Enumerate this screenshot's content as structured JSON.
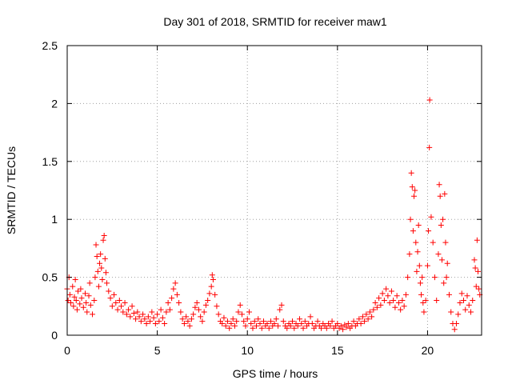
{
  "chart_data": {
    "type": "scatter",
    "title": "Day 301 of 2018, SRMTID for receiver maw1",
    "xlabel": "GPS time / hours",
    "ylabel": "SRMTID / TECUs",
    "xlim": [
      0,
      23
    ],
    "ylim": [
      0,
      2.5
    ],
    "xticks": [
      0,
      5,
      10,
      15,
      20
    ],
    "xtick_labels": [
      "0",
      "5",
      "10",
      "15",
      "20"
    ],
    "yticks": [
      0,
      0.5,
      1,
      1.5,
      2,
      2.5
    ],
    "ytick_labels": [
      "0",
      "0.5",
      "1",
      "1.5",
      "2",
      "2.5"
    ],
    "grid": true,
    "marker": "+",
    "color": "#ff0000",
    "series": [
      {
        "name": "SRMTID",
        "points": [
          [
            0.0,
            0.4
          ],
          [
            0.05,
            0.3
          ],
          [
            0.1,
            0.5
          ],
          [
            0.15,
            0.35
          ],
          [
            0.2,
            0.28
          ],
          [
            0.3,
            0.42
          ],
          [
            0.35,
            0.25
          ],
          [
            0.4,
            0.33
          ],
          [
            0.45,
            0.48
          ],
          [
            0.5,
            0.3
          ],
          [
            0.55,
            0.22
          ],
          [
            0.6,
            0.38
          ],
          [
            0.7,
            0.27
          ],
          [
            0.75,
            0.4
          ],
          [
            0.8,
            0.32
          ],
          [
            0.9,
            0.24
          ],
          [
            1.0,
            0.36
          ],
          [
            1.05,
            0.28
          ],
          [
            1.1,
            0.2
          ],
          [
            1.2,
            0.34
          ],
          [
            1.25,
            0.45
          ],
          [
            1.3,
            0.26
          ],
          [
            1.4,
            0.18
          ],
          [
            1.5,
            0.3
          ],
          [
            1.55,
            0.5
          ],
          [
            1.6,
            0.78
          ],
          [
            1.65,
            0.68
          ],
          [
            1.7,
            0.55
          ],
          [
            1.75,
            0.42
          ],
          [
            1.8,
            0.62
          ],
          [
            1.85,
            0.7
          ],
          [
            1.9,
            0.58
          ],
          [
            1.95,
            0.48
          ],
          [
            2.0,
            0.82
          ],
          [
            2.05,
            0.86
          ],
          [
            2.1,
            0.66
          ],
          [
            2.15,
            0.54
          ],
          [
            2.2,
            0.45
          ],
          [
            2.3,
            0.38
          ],
          [
            2.4,
            0.32
          ],
          [
            2.5,
            0.25
          ],
          [
            2.6,
            0.35
          ],
          [
            2.7,
            0.28
          ],
          [
            2.8,
            0.22
          ],
          [
            2.9,
            0.3
          ],
          [
            3.0,
            0.25
          ],
          [
            3.1,
            0.2
          ],
          [
            3.2,
            0.28
          ],
          [
            3.3,
            0.18
          ],
          [
            3.4,
            0.22
          ],
          [
            3.5,
            0.16
          ],
          [
            3.6,
            0.25
          ],
          [
            3.7,
            0.19
          ],
          [
            3.8,
            0.14
          ],
          [
            3.9,
            0.2
          ],
          [
            4.0,
            0.16
          ],
          [
            4.1,
            0.12
          ],
          [
            4.2,
            0.18
          ],
          [
            4.3,
            0.14
          ],
          [
            4.4,
            0.1
          ],
          [
            4.5,
            0.16
          ],
          [
            4.6,
            0.12
          ],
          [
            4.7,
            0.2
          ],
          [
            4.8,
            0.15
          ],
          [
            4.9,
            0.1
          ],
          [
            5.0,
            0.18
          ],
          [
            5.1,
            0.12
          ],
          [
            5.2,
            0.22
          ],
          [
            5.3,
            0.15
          ],
          [
            5.4,
            0.1
          ],
          [
            5.5,
            0.2
          ],
          [
            5.6,
            0.28
          ],
          [
            5.7,
            0.22
          ],
          [
            5.8,
            0.32
          ],
          [
            5.9,
            0.4
          ],
          [
            6.0,
            0.45
          ],
          [
            6.1,
            0.35
          ],
          [
            6.2,
            0.28
          ],
          [
            6.3,
            0.2
          ],
          [
            6.4,
            0.14
          ],
          [
            6.5,
            0.1
          ],
          [
            6.6,
            0.16
          ],
          [
            6.7,
            0.12
          ],
          [
            6.8,
            0.08
          ],
          [
            6.9,
            0.14
          ],
          [
            7.0,
            0.18
          ],
          [
            7.1,
            0.24
          ],
          [
            7.2,
            0.28
          ],
          [
            7.3,
            0.22
          ],
          [
            7.4,
            0.16
          ],
          [
            7.5,
            0.12
          ],
          [
            7.6,
            0.2
          ],
          [
            7.7,
            0.26
          ],
          [
            7.8,
            0.3
          ],
          [
            7.9,
            0.36
          ],
          [
            8.0,
            0.42
          ],
          [
            8.05,
            0.52
          ],
          [
            8.1,
            0.48
          ],
          [
            8.2,
            0.35
          ],
          [
            8.3,
            0.25
          ],
          [
            8.4,
            0.18
          ],
          [
            8.5,
            0.12
          ],
          [
            8.6,
            0.1
          ],
          [
            8.7,
            0.15
          ],
          [
            8.8,
            0.08
          ],
          [
            8.9,
            0.12
          ],
          [
            9.0,
            0.06
          ],
          [
            9.1,
            0.1
          ],
          [
            9.2,
            0.14
          ],
          [
            9.3,
            0.08
          ],
          [
            9.4,
            0.12
          ],
          [
            9.5,
            0.2
          ],
          [
            9.6,
            0.26
          ],
          [
            9.7,
            0.18
          ],
          [
            9.8,
            0.12
          ],
          [
            9.9,
            0.08
          ],
          [
            10.0,
            0.14
          ],
          [
            10.1,
            0.2
          ],
          [
            10.2,
            0.1
          ],
          [
            10.3,
            0.06
          ],
          [
            10.4,
            0.12
          ],
          [
            10.5,
            0.08
          ],
          [
            10.6,
            0.14
          ],
          [
            10.7,
            0.1
          ],
          [
            10.8,
            0.06
          ],
          [
            10.9,
            0.12
          ],
          [
            11.0,
            0.08
          ],
          [
            11.1,
            0.1
          ],
          [
            11.2,
            0.06
          ],
          [
            11.3,
            0.12
          ],
          [
            11.4,
            0.08
          ],
          [
            11.5,
            0.1
          ],
          [
            11.6,
            0.14
          ],
          [
            11.7,
            0.08
          ],
          [
            11.8,
            0.22
          ],
          [
            11.9,
            0.26
          ],
          [
            12.0,
            0.12
          ],
          [
            12.1,
            0.08
          ],
          [
            12.2,
            0.06
          ],
          [
            12.3,
            0.1
          ],
          [
            12.4,
            0.08
          ],
          [
            12.5,
            0.12
          ],
          [
            12.6,
            0.06
          ],
          [
            12.7,
            0.1
          ],
          [
            12.8,
            0.08
          ],
          [
            12.9,
            0.14
          ],
          [
            13.0,
            0.1
          ],
          [
            13.1,
            0.06
          ],
          [
            13.2,
            0.12
          ],
          [
            13.3,
            0.08
          ],
          [
            13.4,
            0.1
          ],
          [
            13.5,
            0.16
          ],
          [
            13.6,
            0.1
          ],
          [
            13.7,
            0.06
          ],
          [
            13.8,
            0.08
          ],
          [
            13.9,
            0.12
          ],
          [
            14.0,
            0.08
          ],
          [
            14.1,
            0.06
          ],
          [
            14.2,
            0.1
          ],
          [
            14.3,
            0.08
          ],
          [
            14.4,
            0.06
          ],
          [
            14.5,
            0.1
          ],
          [
            14.6,
            0.08
          ],
          [
            14.7,
            0.12
          ],
          [
            14.8,
            0.06
          ],
          [
            14.9,
            0.08
          ],
          [
            15.0,
            0.1
          ],
          [
            15.1,
            0.06
          ],
          [
            15.2,
            0.08
          ],
          [
            15.3,
            0.05
          ],
          [
            15.4,
            0.09
          ],
          [
            15.5,
            0.07
          ],
          [
            15.6,
            0.1
          ],
          [
            15.7,
            0.06
          ],
          [
            15.8,
            0.08
          ],
          [
            15.9,
            0.12
          ],
          [
            16.0,
            0.08
          ],
          [
            16.1,
            0.1
          ],
          [
            16.2,
            0.14
          ],
          [
            16.3,
            0.1
          ],
          [
            16.4,
            0.16
          ],
          [
            16.5,
            0.12
          ],
          [
            16.6,
            0.18
          ],
          [
            16.7,
            0.14
          ],
          [
            16.8,
            0.2
          ],
          [
            16.9,
            0.16
          ],
          [
            17.0,
            0.22
          ],
          [
            17.1,
            0.28
          ],
          [
            17.2,
            0.24
          ],
          [
            17.3,
            0.32
          ],
          [
            17.4,
            0.26
          ],
          [
            17.5,
            0.36
          ],
          [
            17.6,
            0.3
          ],
          [
            17.7,
            0.4
          ],
          [
            17.8,
            0.34
          ],
          [
            17.9,
            0.28
          ],
          [
            18.0,
            0.38
          ],
          [
            18.1,
            0.3
          ],
          [
            18.2,
            0.24
          ],
          [
            18.3,
            0.34
          ],
          [
            18.4,
            0.28
          ],
          [
            18.5,
            0.22
          ],
          [
            18.6,
            0.3
          ],
          [
            18.7,
            0.25
          ],
          [
            18.8,
            0.35
          ],
          [
            18.9,
            0.5
          ],
          [
            19.0,
            0.7
          ],
          [
            19.05,
            1.0
          ],
          [
            19.1,
            1.4
          ],
          [
            19.15,
            1.28
          ],
          [
            19.2,
            0.9
          ],
          [
            19.25,
            1.2
          ],
          [
            19.3,
            1.25
          ],
          [
            19.35,
            0.8
          ],
          [
            19.4,
            0.55
          ],
          [
            19.45,
            0.72
          ],
          [
            19.5,
            0.95
          ],
          [
            19.55,
            0.6
          ],
          [
            19.6,
            0.45
          ],
          [
            19.65,
            0.35
          ],
          [
            19.7,
            0.5
          ],
          [
            19.75,
            0.28
          ],
          [
            19.8,
            0.2
          ],
          [
            19.9,
            0.3
          ],
          [
            20.0,
            0.6
          ],
          [
            20.05,
            0.9
          ],
          [
            20.1,
            1.62
          ],
          [
            20.12,
            2.03
          ],
          [
            20.2,
            1.02
          ],
          [
            20.3,
            0.8
          ],
          [
            20.4,
            0.5
          ],
          [
            20.5,
            0.3
          ],
          [
            20.6,
            0.7
          ],
          [
            20.65,
            1.3
          ],
          [
            20.7,
            1.2
          ],
          [
            20.75,
            0.95
          ],
          [
            20.8,
            0.65
          ],
          [
            20.85,
            1.0
          ],
          [
            20.9,
            0.45
          ],
          [
            20.95,
            1.22
          ],
          [
            21.0,
            0.8
          ],
          [
            21.05,
            0.5
          ],
          [
            21.1,
            0.62
          ],
          [
            21.2,
            0.35
          ],
          [
            21.3,
            0.2
          ],
          [
            21.4,
            0.1
          ],
          [
            21.5,
            0.05
          ],
          [
            21.6,
            0.1
          ],
          [
            21.7,
            0.18
          ],
          [
            21.8,
            0.28
          ],
          [
            21.9,
            0.36
          ],
          [
            22.0,
            0.3
          ],
          [
            22.1,
            0.22
          ],
          [
            22.2,
            0.34
          ],
          [
            22.3,
            0.26
          ],
          [
            22.4,
            0.2
          ],
          [
            22.5,
            0.3
          ],
          [
            22.6,
            0.65
          ],
          [
            22.65,
            0.58
          ],
          [
            22.7,
            0.42
          ],
          [
            22.75,
            0.82
          ],
          [
            22.8,
            0.55
          ],
          [
            22.85,
            0.4
          ],
          [
            22.9,
            0.35
          ]
        ]
      }
    ]
  }
}
